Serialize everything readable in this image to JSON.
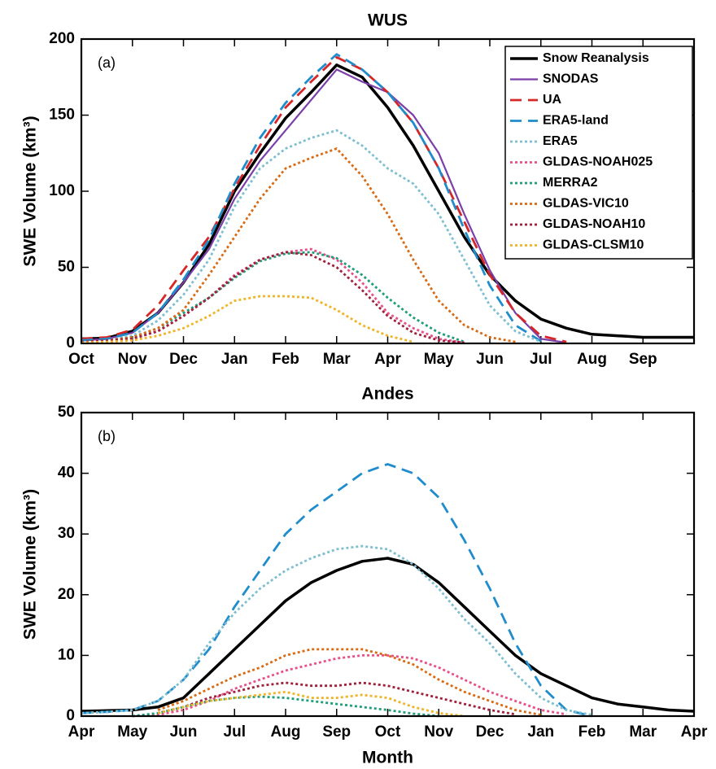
{
  "chart_data": [
    {
      "type": "line",
      "title": "WUS",
      "annotation": "(a)",
      "ylabel": "SWE Volume (km³)",
      "legend": "upper right",
      "x": [
        0,
        0.5,
        1,
        1.5,
        2,
        2.5,
        3,
        3.5,
        4,
        4.5,
        5,
        5.5,
        6,
        6.5,
        7,
        7.5,
        8,
        8.5,
        9,
        9.5,
        10,
        10.5,
        11,
        11.5,
        12
      ],
      "xlim": [
        0,
        12
      ],
      "xticks": [
        {
          "value": 0,
          "label": "Oct"
        },
        {
          "value": 1,
          "label": "Nov"
        },
        {
          "value": 2,
          "label": "Dec"
        },
        {
          "value": 3,
          "label": "Jan"
        },
        {
          "value": 4,
          "label": "Feb"
        },
        {
          "value": 5,
          "label": "Mar"
        },
        {
          "value": 6,
          "label": "Apr"
        },
        {
          "value": 7,
          "label": "May"
        },
        {
          "value": 8,
          "label": "Jun"
        },
        {
          "value": 9,
          "label": "Jul"
        },
        {
          "value": 10,
          "label": "Aug"
        },
        {
          "value": 11,
          "label": "Sep"
        }
      ],
      "ylim": [
        0,
        200
      ],
      "yticks": [
        0,
        50,
        100,
        150,
        200
      ],
      "series": [
        {
          "name": "Snow Reanalysis",
          "color": "#000000",
          "style": "solid",
          "width": 3.5,
          "values": [
            3,
            3.5,
            8,
            20,
            40,
            65,
            100,
            125,
            148,
            165,
            183,
            175,
            155,
            130,
            100,
            70,
            45,
            28,
            16,
            10,
            6,
            5,
            4,
            4,
            4
          ]
        },
        {
          "name": "SNODAS",
          "color": "#7b3fa8",
          "style": "solid",
          "width": 2.2,
          "values": [
            2,
            3,
            7,
            20,
            40,
            62,
            95,
            120,
            140,
            160,
            180,
            172,
            165,
            150,
            125,
            85,
            48,
            20,
            3,
            0.5,
            null,
            null,
            null,
            null,
            null
          ]
        },
        {
          "name": "UA",
          "color": "#d62728",
          "style": "dashed",
          "width": 2.8,
          "values": [
            3,
            4,
            9,
            25,
            48,
            70,
            102,
            130,
            155,
            172,
            188,
            180,
            165,
            145,
            115,
            80,
            45,
            20,
            5,
            1,
            null,
            null,
            null,
            null,
            null
          ]
        },
        {
          "name": "ERA5-land",
          "color": "#1f8ccc",
          "style": "dashed",
          "width": 2.8,
          "values": [
            2,
            3,
            7,
            20,
            42,
            68,
            105,
            135,
            158,
            175,
            190,
            180,
            165,
            145,
            115,
            75,
            38,
            12,
            1.5,
            null,
            null,
            null,
            null,
            null,
            null
          ]
        },
        {
          "name": "ERA5",
          "color": "#7fbfcf",
          "style": "dotted",
          "width": 2.8,
          "values": [
            1,
            2,
            5,
            15,
            32,
            55,
            90,
            115,
            128,
            135,
            140,
            130,
            115,
            105,
            85,
            55,
            25,
            8,
            1,
            null,
            null,
            null,
            null,
            null,
            null
          ]
        },
        {
          "name": "GLDAS-NOAH025",
          "color": "#e8508a",
          "style": "dotted",
          "width": 2.8,
          "values": [
            1,
            2,
            3,
            8,
            18,
            30,
            45,
            55,
            60,
            62,
            55,
            40,
            20,
            10,
            3,
            0.5,
            null,
            null,
            null,
            null,
            null,
            null,
            null,
            null,
            null
          ]
        },
        {
          "name": "MERRA2",
          "color": "#1f9e7a",
          "style": "dotted",
          "width": 2.8,
          "values": [
            1,
            2,
            4,
            10,
            20,
            30,
            43,
            54,
            59,
            60,
            56,
            45,
            30,
            17,
            7,
            1,
            null,
            null,
            null,
            null,
            null,
            null,
            null,
            null,
            null
          ]
        },
        {
          "name": "GLDAS-VIC10",
          "color": "#d96b14",
          "style": "dotted",
          "width": 2.8,
          "values": [
            1,
            2,
            4,
            10,
            22,
            45,
            70,
            95,
            115,
            122,
            128,
            110,
            85,
            55,
            28,
            12,
            4,
            1,
            null,
            null,
            null,
            null,
            null,
            null,
            null
          ]
        },
        {
          "name": "GLDAS-NOAH10",
          "color": "#a0203c",
          "style": "dotted",
          "width": 2.8,
          "values": [
            1,
            2,
            3,
            8,
            18,
            30,
            44,
            55,
            60,
            58,
            50,
            35,
            18,
            7,
            2,
            0.5,
            null,
            null,
            null,
            null,
            null,
            null,
            null,
            null,
            null
          ]
        },
        {
          "name": "GLDAS-CLSM10",
          "color": "#f0b429",
          "style": "dotted",
          "width": 2.8,
          "values": [
            0.5,
            1,
            2,
            5,
            10,
            18,
            28,
            31,
            31,
            30,
            22,
            12,
            5,
            1,
            null,
            null,
            null,
            null,
            null,
            null,
            null,
            null,
            null,
            null,
            null
          ]
        }
      ]
    },
    {
      "type": "line",
      "title": "Andes",
      "annotation": "(b)",
      "ylabel": "SWE Volume (km³)",
      "xlabel": "Month",
      "x": [
        0,
        0.5,
        1,
        1.5,
        2,
        2.5,
        3,
        3.5,
        4,
        4.5,
        5,
        5.5,
        6,
        6.5,
        7,
        7.5,
        8,
        8.5,
        9,
        9.5,
        10,
        10.5,
        11,
        11.5,
        12
      ],
      "xlim": [
        0,
        12
      ],
      "xticks": [
        {
          "value": 0,
          "label": "Apr"
        },
        {
          "value": 1,
          "label": "May"
        },
        {
          "value": 2,
          "label": "Jun"
        },
        {
          "value": 3,
          "label": "Jul"
        },
        {
          "value": 4,
          "label": "Aug"
        },
        {
          "value": 5,
          "label": "Sep"
        },
        {
          "value": 6,
          "label": "Oct"
        },
        {
          "value": 7,
          "label": "Nov"
        },
        {
          "value": 8,
          "label": "Dec"
        },
        {
          "value": 9,
          "label": "Jan"
        },
        {
          "value": 10,
          "label": "Feb"
        },
        {
          "value": 11,
          "label": "Mar"
        },
        {
          "value": 12,
          "label": "Apr"
        }
      ],
      "ylim": [
        0,
        50
      ],
      "yticks": [
        0,
        10,
        20,
        30,
        40,
        50
      ],
      "series": [
        {
          "color": "#000000",
          "style": "solid",
          "width": 3.5,
          "values": [
            0.8,
            0.9,
            1,
            1.5,
            3,
            7,
            11,
            15,
            19,
            22,
            24,
            25.5,
            26,
            25,
            22,
            18,
            14,
            10,
            7,
            5,
            3,
            2,
            1.5,
            1,
            0.8
          ]
        },
        {
          "color": "#1f8ccc",
          "style": "dashed",
          "width": 2.8,
          "values": [
            0.5,
            0.7,
            1,
            2.5,
            6,
            11,
            18,
            24,
            30,
            34,
            37,
            40,
            41.5,
            40,
            36,
            29,
            21,
            12,
            5,
            1,
            0,
            null,
            null,
            null,
            null
          ]
        },
        {
          "color": "#7fbfcf",
          "style": "dotted",
          "width": 2.8,
          "values": [
            0.5,
            0.7,
            1,
            2.5,
            6,
            12,
            17,
            21,
            24,
            26,
            27.5,
            28,
            27.5,
            25,
            21,
            16,
            12,
            7,
            3,
            1,
            0.2,
            null,
            null,
            null,
            null
          ]
        },
        {
          "color": "#e8508a",
          "style": "dotted",
          "width": 2.8,
          "values": [
            null,
            null,
            0,
            0.2,
            1,
            2.5,
            4.5,
            6,
            7.5,
            8.5,
            9.5,
            10,
            10,
            9.5,
            8,
            6,
            4,
            2.5,
            1,
            0.3,
            null,
            null,
            null,
            null,
            null
          ]
        },
        {
          "color": "#1f9e7a",
          "style": "dotted",
          "width": 2.8,
          "values": [
            null,
            null,
            0,
            0.5,
            1.5,
            2.5,
            3,
            3.2,
            3,
            2.5,
            2,
            1.5,
            1,
            0.4,
            0,
            null,
            null,
            null,
            null,
            null,
            null,
            null,
            null,
            null,
            null
          ]
        },
        {
          "color": "#d96b14",
          "style": "dotted",
          "width": 2.8,
          "values": [
            null,
            null,
            null,
            1,
            2.5,
            4.5,
            6.5,
            8,
            10,
            11,
            11,
            11,
            10,
            8.5,
            6,
            4,
            2.5,
            1,
            0.2,
            null,
            null,
            null,
            null,
            null,
            null
          ]
        },
        {
          "color": "#a0203c",
          "style": "dotted",
          "width": 2.8,
          "values": [
            null,
            null,
            null,
            0.5,
            1.5,
            3,
            4,
            5,
            5.5,
            5,
            5,
            5.5,
            5,
            4,
            3,
            2,
            1,
            0.3,
            null,
            null,
            null,
            null,
            null,
            null,
            null
          ]
        },
        {
          "color": "#f0b429",
          "style": "dotted",
          "width": 2.8,
          "values": [
            null,
            null,
            null,
            0.5,
            1.5,
            2.5,
            3,
            3.5,
            4,
            3,
            3,
            3.5,
            3,
            1.5,
            0.5,
            0,
            null,
            null,
            null,
            null,
            null,
            null,
            null,
            null,
            null
          ]
        }
      ]
    }
  ]
}
